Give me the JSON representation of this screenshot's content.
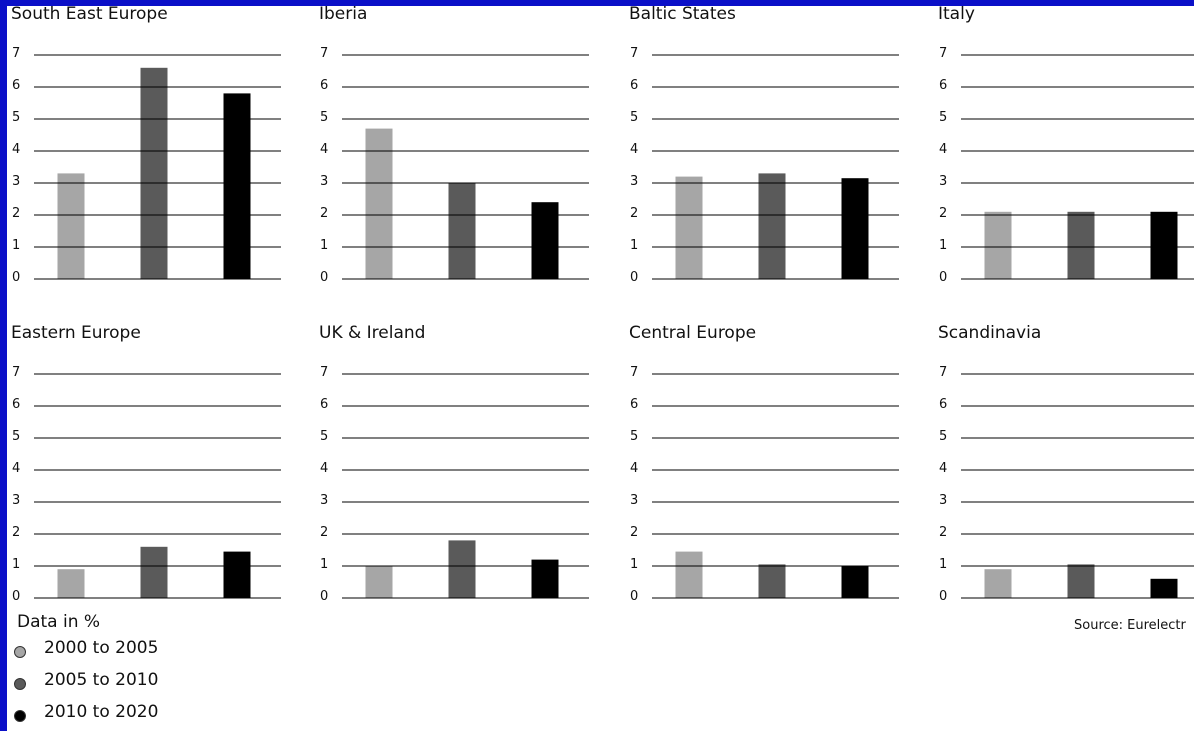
{
  "chart_data": [
    {
      "type": "bar",
      "title": "South East Europe",
      "categories": [
        "2000 to 2005",
        "2005 to 2010",
        "2010 to 2020"
      ],
      "values": [
        3.3,
        6.6,
        5.8
      ],
      "ylim": [
        0,
        7
      ],
      "yticks": [
        0,
        1,
        2,
        3,
        4,
        5,
        6,
        7
      ]
    },
    {
      "type": "bar",
      "title": "Iberia",
      "categories": [
        "2000 to 2005",
        "2005 to 2010",
        "2010 to 2020"
      ],
      "values": [
        4.7,
        3.0,
        2.4
      ],
      "ylim": [
        0,
        7
      ],
      "yticks": [
        0,
        1,
        2,
        3,
        4,
        5,
        6,
        7
      ]
    },
    {
      "type": "bar",
      "title": "Baltic States",
      "categories": [
        "2000 to 2005",
        "2005 to 2010",
        "2010 to 2020"
      ],
      "values": [
        3.2,
        3.3,
        3.15
      ],
      "ylim": [
        0,
        7
      ],
      "yticks": [
        0,
        1,
        2,
        3,
        4,
        5,
        6,
        7
      ]
    },
    {
      "type": "bar",
      "title": "Italy",
      "categories": [
        "2000 to 2005",
        "2005 to 2010",
        "2010 to 2020"
      ],
      "values": [
        2.1,
        2.1,
        2.1
      ],
      "ylim": [
        0,
        7
      ],
      "yticks": [
        0,
        1,
        2,
        3,
        4,
        5,
        6,
        7
      ]
    },
    {
      "type": "bar",
      "title": "Eastern Europe",
      "categories": [
        "2000 to 2005",
        "2005 to 2010",
        "2010 to 2020"
      ],
      "values": [
        0.9,
        1.6,
        1.45
      ],
      "ylim": [
        0,
        7
      ],
      "yticks": [
        0,
        1,
        2,
        3,
        4,
        5,
        6,
        7
      ]
    },
    {
      "type": "bar",
      "title": "UK & Ireland",
      "categories": [
        "2000 to 2005",
        "2005 to 2010",
        "2010 to 2020"
      ],
      "values": [
        1.0,
        1.8,
        1.2
      ],
      "ylim": [
        0,
        7
      ],
      "yticks": [
        0,
        1,
        2,
        3,
        4,
        5,
        6,
        7
      ]
    },
    {
      "type": "bar",
      "title": "Central Europe",
      "categories": [
        "2000 to 2005",
        "2005 to 2010",
        "2010 to 2020"
      ],
      "values": [
        1.45,
        1.05,
        1.0
      ],
      "ylim": [
        0,
        7
      ],
      "yticks": [
        0,
        1,
        2,
        3,
        4,
        5,
        6,
        7
      ]
    },
    {
      "type": "bar",
      "title": "Scandinavia",
      "categories": [
        "2000 to 2005",
        "2005 to 2010",
        "2010 to 2020"
      ],
      "values": [
        0.9,
        1.05,
        0.6
      ],
      "ylim": [
        0,
        7
      ],
      "yticks": [
        0,
        1,
        2,
        3,
        4,
        5,
        6,
        7
      ]
    }
  ],
  "legend": {
    "title": "Data in %",
    "items": [
      {
        "label": "2000 to 2005",
        "color": "#a6a6a6"
      },
      {
        "label": "2005 to 2010",
        "color": "#5a5a5a"
      },
      {
        "label": "2010 to 2020",
        "color": "#000000"
      }
    ]
  },
  "source": "Source: Eurelectr",
  "colors": {
    "background": "#0b10c8",
    "panel": "#ffffff",
    "gridline": "#000000"
  }
}
